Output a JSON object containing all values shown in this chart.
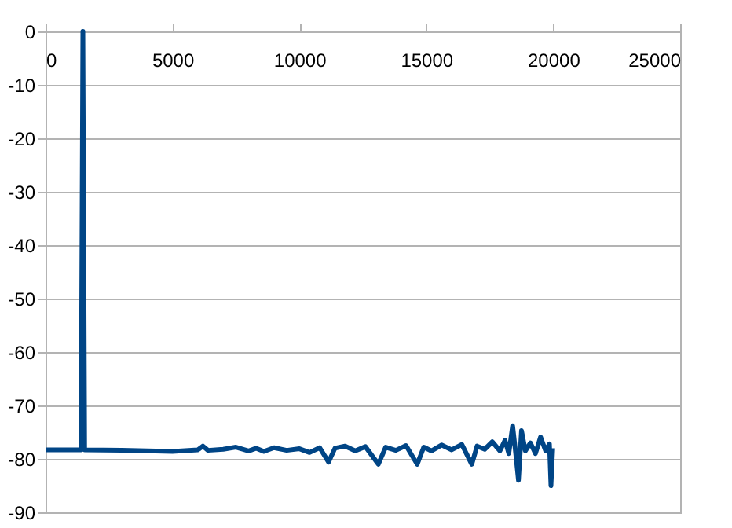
{
  "chart_data": {
    "type": "line",
    "xlim": [
      0,
      25000
    ],
    "xticks": [
      0,
      5000,
      10000,
      15000,
      20000,
      25000
    ],
    "ylim": [
      -90,
      0
    ],
    "yticks": [
      0,
      -10,
      -20,
      -30,
      -40,
      -50,
      -60,
      -70,
      -80,
      -90
    ],
    "grid": "y",
    "marker": "none",
    "line_style": "solid",
    "series": [
      {
        "color": "#004586",
        "x": [
          0,
          1400,
          1470,
          1540,
          3000,
          5000,
          6000,
          6200,
          6400,
          7000,
          7500,
          8000,
          8300,
          8600,
          9000,
          9500,
          10000,
          10400,
          10800,
          11150,
          11400,
          11800,
          12200,
          12600,
          13110,
          13400,
          13800,
          14200,
          14640,
          14900,
          15200,
          15600,
          16000,
          16400,
          16790,
          17000,
          17300,
          17600,
          17900,
          18100,
          18250,
          18400,
          18500,
          18630,
          18750,
          18900,
          19100,
          19300,
          19500,
          19700,
          19850,
          19910,
          19980
        ],
        "values": [
          -78.3,
          -78.3,
          0,
          -78.3,
          -78.4,
          -78.6,
          -78.3,
          -77.6,
          -78.4,
          -78.2,
          -77.8,
          -78.5,
          -78,
          -78.6,
          -77.9,
          -78.4,
          -78.1,
          -78.8,
          -77.9,
          -80.6,
          -78,
          -77.6,
          -78.5,
          -77.7,
          -81,
          -77.8,
          -78.4,
          -77.5,
          -81,
          -77.8,
          -78.5,
          -77.4,
          -78.3,
          -77.3,
          -81,
          -77.6,
          -78.2,
          -76.8,
          -78.5,
          -76.5,
          -79,
          -73.8,
          -78,
          -84,
          -74.7,
          -78.5,
          -77,
          -79,
          -75.9,
          -78.5,
          -77.2,
          -85,
          -78
        ]
      }
    ]
  }
}
